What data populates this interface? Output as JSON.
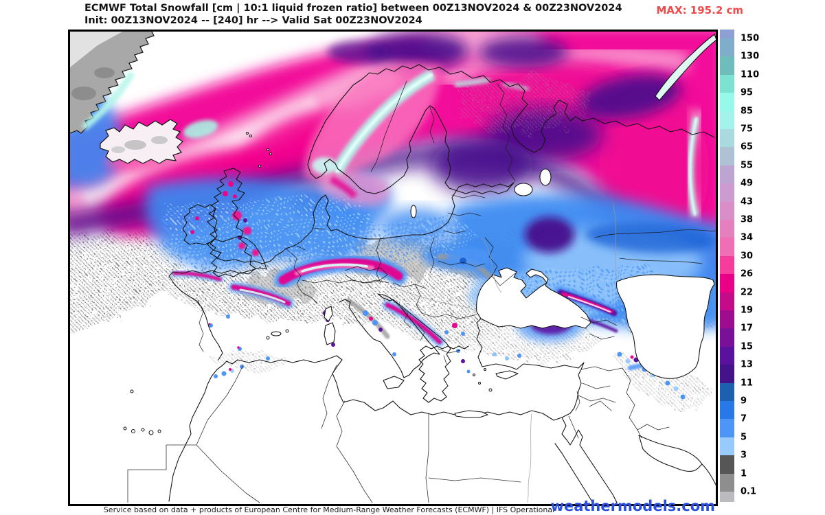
{
  "header": {
    "title_line1": "ECMWF Total Snowfall [cm | 10:1 liquid frozen ratio] between 00Z13NOV2024 & 00Z23NOV2024",
    "title_line2": "Init: 00Z13NOV2024 -- [240] hr --> Valid Sat 00Z23NOV2024",
    "max_label": "MAX: 195.2 cm"
  },
  "footer": {
    "attribution": "Service based on data + products of European Centre for Medium-Range Weather Forecasts (ECMWF) | IFS Operational",
    "brand": "weathermodels.com"
  },
  "colorbar": {
    "units": "cm",
    "levels_top_to_bottom": [
      "150",
      "130",
      "110",
      "95",
      "85",
      "75",
      "65",
      "55",
      "49",
      "43",
      "38",
      "34",
      "30",
      "26",
      "22",
      "19",
      "17",
      "15",
      "13",
      "11",
      "9",
      "7",
      "5",
      "3",
      "1",
      "0.1"
    ],
    "segment_colors_top_to_bottom": [
      "#8E9FD6",
      "#7FAECB",
      "#6FBDBA",
      "#7EE2D2",
      "#97FAE9",
      "#A3F2EC",
      "#A9DAE0",
      "#AFC2D4",
      "#BCA6D1",
      "#CC9CD0",
      "#DA8EC8",
      "#E67FBE",
      "#F06FB4",
      "#F63D9C",
      "#E90087",
      "#C50A8A",
      "#9E0D90",
      "#7A0F99",
      "#5A119E",
      "#44138C",
      "#1D60B2",
      "#2878E8",
      "#4D95F6",
      "#98CAFD",
      "#565656",
      "#8E8E8E",
      "#BABABF"
    ]
  },
  "palette": {
    "max_red": "#EF4B4B",
    "brand_blue": "#2B50DE",
    "snow_extreme_pink": "#F2079A",
    "snow_deep_purple": "#470E8C",
    "snow_blue": "#3E8BF2",
    "snow_light_blue": "#8FC3FB",
    "mountain_magenta": "#E6058C",
    "cyan_highlight": "#B5F6EA",
    "trace_gray": "#8E8E8E"
  },
  "chart_data": {
    "type": "heatmap",
    "title": "ECMWF Total Snowfall [cm | 10:1 liquid frozen ratio] between 00Z13NOV2024 & 00Z23NOV2024",
    "units": "cm",
    "max_value_cm": 195.2,
    "legend_position": "right",
    "legend_levels_cm": [
      0.1,
      1,
      3,
      5,
      7,
      9,
      11,
      13,
      15,
      17,
      19,
      22,
      26,
      30,
      34,
      38,
      43,
      49,
      55,
      65,
      75,
      85,
      95,
      110,
      130,
      150
    ],
    "legend_colors_low_to_high": [
      "#BABABF",
      "#8E8E8E",
      "#565656",
      "#98CAFD",
      "#4D95F6",
      "#2878E8",
      "#1D60B2",
      "#44138C",
      "#5A119E",
      "#7A0F99",
      "#9E0D90",
      "#C50A8A",
      "#E90087",
      "#F63D9C",
      "#F06FB4",
      "#E67FBE",
      "#DA8EC8",
      "#CC9CD0",
      "#BCA6D1",
      "#AFC2D4",
      "#A9DAE0",
      "#A3F2EC",
      "#97FAE9",
      "#7EE2D2",
      "#6FBDBA",
      "#7FAECB",
      "#8E9FD6"
    ]
  }
}
